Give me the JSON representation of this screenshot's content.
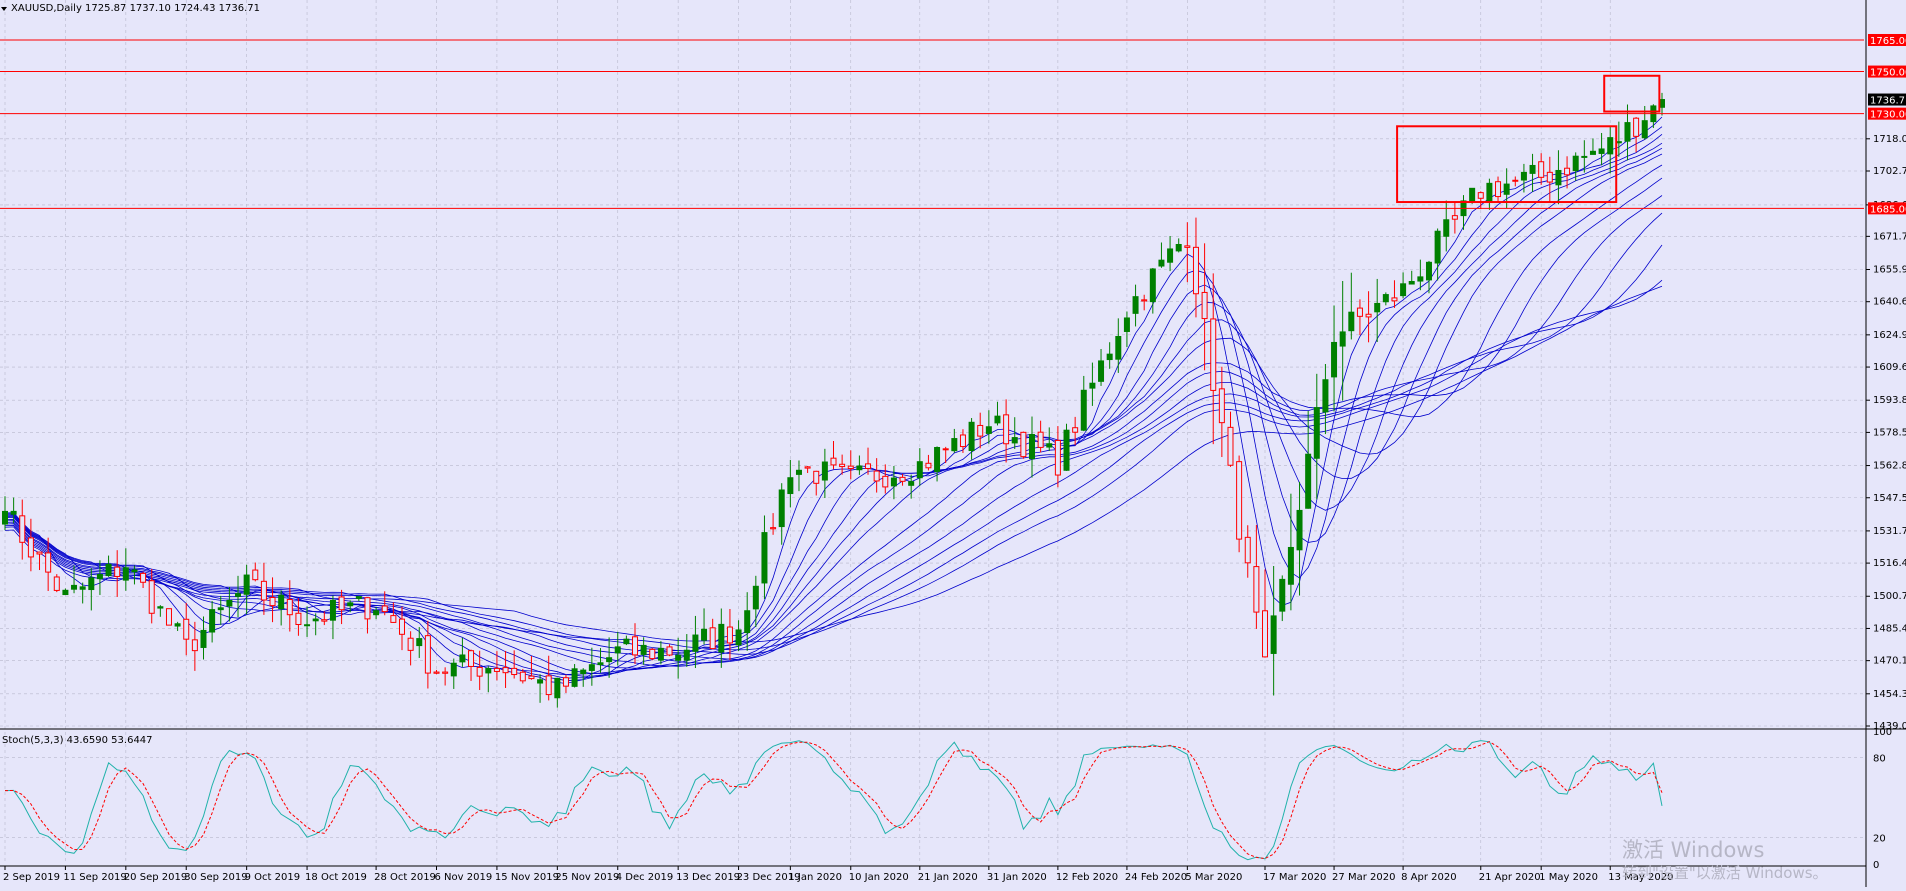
{
  "header": {
    "title": "XAUUSD,Daily  1725.87 1737.10 1724.43 1736.71"
  },
  "stoch": {
    "label": "Stoch(5,3,3) 43.6590 53.6447",
    "ticks": [
      100,
      80,
      20,
      0
    ]
  },
  "watermark": {
    "line1": "激活 Windows",
    "line2": "转到\"设置\"以激活 Windows。"
  },
  "colors": {
    "background": "#e6e6fa",
    "grid": "#b8b8cc",
    "bull": "#008000",
    "bear": "#ff0000",
    "ma": "#0000cc",
    "levels": "#ff0000",
    "stoch_main": "#20b2aa",
    "stoch_signal": "#ff0000"
  },
  "chart_data": {
    "type": "candlestick",
    "symbol": "XAUUSD",
    "timeframe": "Daily",
    "ylim": [
      1439.05,
      1784.0
    ],
    "y_ticks": [
      1718.05,
      1702.75,
      1686.65,
      1671.7,
      1655.95,
      1640.65,
      1624.9,
      1609.6,
      1593.85,
      1578.55,
      1562.8,
      1547.5,
      1531.75,
      1516.45,
      1500.7,
      1485.4,
      1470.1,
      1454.35,
      1439.05
    ],
    "price_label": 1736.71,
    "levels": [
      1765.0,
      1750.0,
      1730.0,
      1685.0
    ],
    "boxes": [
      {
        "from": "8 Apr 2020",
        "to": "12 May 2020",
        "low": 1688,
        "high": 1724
      },
      {
        "from": "13 May 2020",
        "to": "21 May 2020",
        "low": 1731,
        "high": 1748
      }
    ],
    "date_labels": [
      "2 Sep 2019",
      "11 Sep 2019",
      "20 Sep 2019",
      "30 Sep 2019",
      "9 Oct 2019",
      "18 Oct 2019",
      "28 Oct 2019",
      "6 Nov 2019",
      "15 Nov 2019",
      "25 Nov 2019",
      "4 Dec 2019",
      "13 Dec 2019",
      "23 Dec 2019",
      "1 Jan 2020",
      "10 Jan 2020",
      "21 Jan 2020",
      "31 Jan 2020",
      "12 Feb 2020",
      "24 Feb 2020",
      "5 Mar 2020",
      "17 Mar 2020",
      "27 Mar 2020",
      "8 Apr 2020",
      "21 Apr 2020",
      "1 May 2020",
      "13 May 2020"
    ],
    "close_anchors": [
      {
        "date": "2 Sep 2019",
        "close": 1541
      },
      {
        "date": "11 Sep 2019",
        "close": 1500
      },
      {
        "date": "20 Sep 2019",
        "close": 1516
      },
      {
        "date": "30 Sep 2019",
        "close": 1476
      },
      {
        "date": "9 Oct 2019",
        "close": 1505
      },
      {
        "date": "18 Oct 2019",
        "close": 1490
      },
      {
        "date": "28 Oct 2019",
        "close": 1497
      },
      {
        "date": "6 Nov 2019",
        "close": 1466
      },
      {
        "date": "15 Nov 2019",
        "close": 1468
      },
      {
        "date": "25 Nov 2019",
        "close": 1456
      },
      {
        "date": "4 Dec 2019",
        "close": 1474
      },
      {
        "date": "13 Dec 2019",
        "close": 1475
      },
      {
        "date": "23 Dec 2019",
        "close": 1486
      },
      {
        "date": "1 Jan 2020",
        "close": 1562
      },
      {
        "date": "10 Jan 2020",
        "close": 1556
      },
      {
        "date": "21 Jan 2020",
        "close": 1563
      },
      {
        "date": "31 Jan 2020",
        "close": 1583
      },
      {
        "date": "12 Feb 2020",
        "close": 1565
      },
      {
        "date": "24 Feb 2020",
        "close": 1637
      },
      {
        "date": "5 Mar 2020",
        "close": 1673
      },
      {
        "date": "17 Mar 2020",
        "close": 1465
      },
      {
        "date": "27 Mar 2020",
        "close": 1625
      },
      {
        "date": "8 Apr 2020",
        "close": 1646
      },
      {
        "date": "21 Apr 2020",
        "close": 1694
      },
      {
        "date": "1 May 2020",
        "close": 1700
      },
      {
        "date": "13 May 2020",
        "close": 1715
      },
      {
        "date": "21 May 2020",
        "close": 1736.71
      }
    ],
    "ma_periods": [
      5,
      8,
      11,
      14,
      17,
      20,
      26,
      30,
      35,
      40,
      45,
      50,
      60
    ],
    "stochastic": {
      "params": "5,3,3",
      "main": 43.659,
      "signal": 53.6447,
      "levels": [
        80,
        20
      ]
    }
  }
}
